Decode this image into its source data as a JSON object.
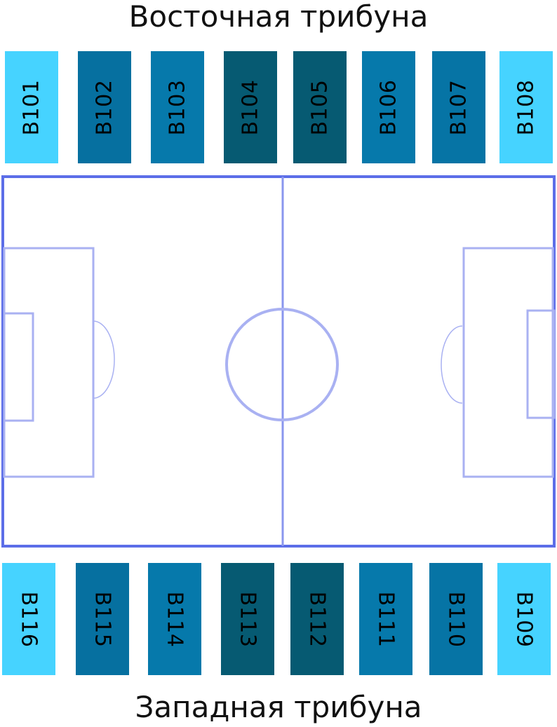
{
  "east_stand": {
    "title": "Восточная трибуна",
    "sectors": [
      {
        "label": "B101",
        "color": "#46d3ff"
      },
      {
        "label": "B102",
        "color": "#0670a0"
      },
      {
        "label": "B103",
        "color": "#0679ab"
      },
      {
        "label": "B104",
        "color": "#065a72"
      },
      {
        "label": "B105",
        "color": "#065a72"
      },
      {
        "label": "B106",
        "color": "#0679ab"
      },
      {
        "label": "B107",
        "color": "#0674a5"
      },
      {
        "label": "B108",
        "color": "#46d3ff"
      }
    ]
  },
  "west_stand": {
    "title": "Западная трибуна",
    "sectors": [
      {
        "label": "B116",
        "color": "#46d3ff"
      },
      {
        "label": "B115",
        "color": "#0670a0"
      },
      {
        "label": "B114",
        "color": "#0679ab"
      },
      {
        "label": "B113",
        "color": "#065a72"
      },
      {
        "label": "B112",
        "color": "#065a72"
      },
      {
        "label": "B111",
        "color": "#0679ab"
      },
      {
        "label": "B110",
        "color": "#0674a5"
      },
      {
        "label": "B109",
        "color": "#46d3ff"
      }
    ]
  },
  "pitch": {
    "line_color": "#5c6ee8",
    "line_color_light": "#a9b1f2"
  }
}
